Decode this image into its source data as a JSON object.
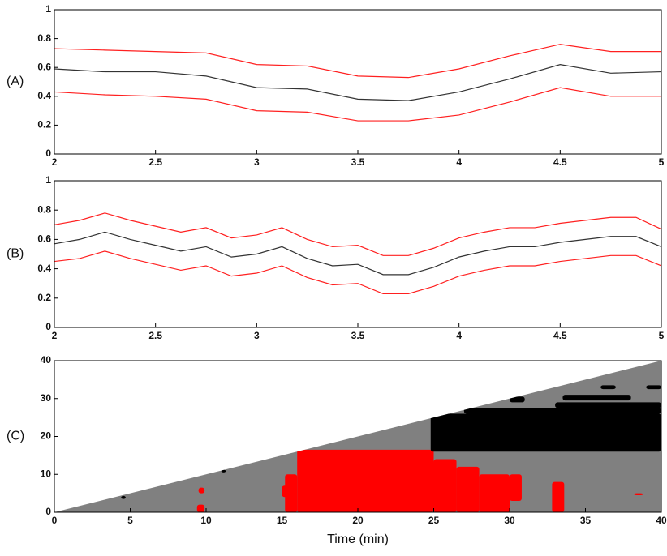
{
  "chart_data": [
    {
      "type": "line",
      "label": "(A)",
      "xlim": [
        2,
        5
      ],
      "ylim": [
        0,
        1
      ],
      "xticks": [
        2,
        2.5,
        3,
        3.5,
        4,
        4.5,
        5
      ],
      "yticks": [
        0,
        0.2,
        0.4,
        0.6,
        0.8,
        1
      ],
      "x": [
        2,
        2.25,
        2.5,
        2.75,
        3,
        3.25,
        3.5,
        3.75,
        4,
        4.25,
        4.5,
        4.75,
        5
      ],
      "series": [
        {
          "color": "#ff2020",
          "values": [
            0.73,
            0.72,
            0.71,
            0.7,
            0.62,
            0.61,
            0.54,
            0.53,
            0.59,
            0.68,
            0.76,
            0.71,
            0.71
          ]
        },
        {
          "color": "#333333",
          "values": [
            0.59,
            0.57,
            0.57,
            0.54,
            0.46,
            0.45,
            0.38,
            0.37,
            0.43,
            0.52,
            0.62,
            0.56,
            0.57
          ]
        },
        {
          "color": "#ff2020",
          "values": [
            0.43,
            0.41,
            0.4,
            0.38,
            0.3,
            0.29,
            0.23,
            0.23,
            0.27,
            0.36,
            0.46,
            0.4,
            0.4
          ]
        }
      ]
    },
    {
      "type": "line",
      "label": "(B)",
      "xlim": [
        2,
        5
      ],
      "ylim": [
        0,
        1
      ],
      "xticks": [
        2,
        2.5,
        3,
        3.5,
        4,
        4.5,
        5
      ],
      "yticks": [
        0,
        0.2,
        0.4,
        0.6,
        0.8,
        1
      ],
      "x": [
        2,
        2.125,
        2.25,
        2.375,
        2.5,
        2.625,
        2.75,
        2.875,
        3,
        3.125,
        3.25,
        3.375,
        3.5,
        3.625,
        3.75,
        3.875,
        4,
        4.125,
        4.25,
        4.375,
        4.5,
        4.625,
        4.75,
        4.875,
        5
      ],
      "series": [
        {
          "color": "#ff2020",
          "values": [
            0.7,
            0.73,
            0.78,
            0.73,
            0.69,
            0.65,
            0.68,
            0.61,
            0.63,
            0.68,
            0.6,
            0.55,
            0.56,
            0.49,
            0.49,
            0.54,
            0.61,
            0.65,
            0.68,
            0.68,
            0.71,
            0.73,
            0.75,
            0.75,
            0.67
          ]
        },
        {
          "color": "#333333",
          "values": [
            0.57,
            0.6,
            0.65,
            0.6,
            0.56,
            0.52,
            0.55,
            0.48,
            0.5,
            0.55,
            0.47,
            0.42,
            0.43,
            0.36,
            0.36,
            0.41,
            0.48,
            0.52,
            0.55,
            0.55,
            0.58,
            0.6,
            0.62,
            0.62,
            0.55
          ]
        },
        {
          "color": "#ff2020",
          "values": [
            0.45,
            0.47,
            0.52,
            0.47,
            0.43,
            0.39,
            0.42,
            0.35,
            0.37,
            0.42,
            0.34,
            0.29,
            0.3,
            0.23,
            0.23,
            0.28,
            0.35,
            0.39,
            0.42,
            0.42,
            0.45,
            0.47,
            0.49,
            0.49,
            0.42
          ]
        }
      ]
    },
    {
      "type": "regions",
      "label": "(C)",
      "xlabel": "Time (min)",
      "xlim": [
        0,
        40
      ],
      "ylim": [
        0,
        40
      ],
      "xticks": [
        0,
        5,
        10,
        15,
        20,
        25,
        30,
        35,
        40
      ],
      "yticks": [
        0,
        10,
        20,
        30,
        40
      ],
      "domain": {
        "color": "#808080",
        "points": [
          [
            0,
            0
          ],
          [
            40,
            0
          ],
          [
            40,
            40
          ]
        ]
      },
      "regions": [
        {
          "color": "#ff0000",
          "rects": [
            [
              16,
              25,
              0,
              16.5
            ],
            [
              25,
              26.5,
              0,
              14
            ],
            [
              26.5,
              28,
              0,
              12
            ],
            [
              28,
              30,
              0,
              10
            ],
            [
              30,
              30.8,
              3,
              10
            ],
            [
              15.2,
              16,
              0,
              10
            ],
            [
              15,
              15.6,
              4,
              7
            ],
            [
              9.4,
              9.9,
              0,
              2
            ],
            [
              9.5,
              9.9,
              5,
              6.5
            ],
            [
              32.8,
              33.6,
              0,
              8
            ],
            [
              38.2,
              38.8,
              4.5,
              5
            ]
          ]
        },
        {
          "color": "#000000",
          "rects": [
            [
              24.8,
              40,
              16,
              26
            ],
            [
              27,
              40,
              26,
              27.5
            ],
            [
              33,
              40,
              27.5,
              29
            ],
            [
              30,
              31,
              29,
              30.5
            ],
            [
              33.5,
              38,
              29.5,
              31
            ],
            [
              36,
              37,
              32.5,
              33.5
            ],
            [
              39,
              40,
              32.5,
              33.5
            ],
            [
              4.4,
              4.7,
              3.5,
              4.3
            ],
            [
              11,
              11.3,
              10.5,
              11.2
            ]
          ]
        }
      ]
    }
  ]
}
